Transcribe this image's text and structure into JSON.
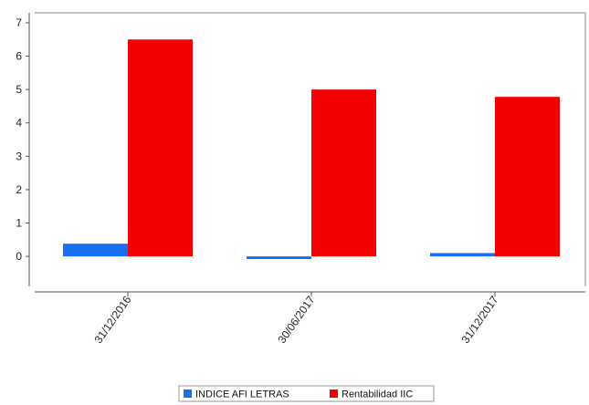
{
  "chart_data": {
    "type": "bar",
    "categories": [
      "31/12/2016",
      "30/06/2017",
      "31/12/2017"
    ],
    "series": [
      {
        "name": "INDICE AFI LETRAS",
        "color": "#1a6ff2",
        "values": [
          0.38,
          -0.08,
          0.1
        ]
      },
      {
        "name": "Rentabilidad IIC",
        "color": "#f50000",
        "values": [
          6.5,
          5.0,
          4.78
        ]
      }
    ],
    "ylim": [
      -0.9,
      7.3
    ],
    "yticks": [
      0,
      1,
      2,
      3,
      4,
      5,
      6,
      7
    ],
    "grid": false,
    "legend": "bottom-center",
    "title": "",
    "xlabel": "",
    "ylabel": ""
  }
}
